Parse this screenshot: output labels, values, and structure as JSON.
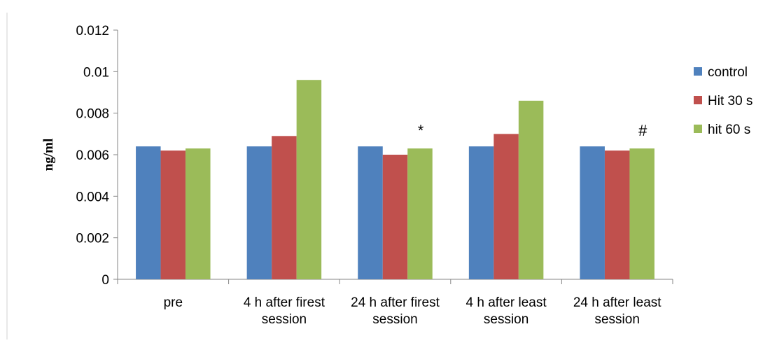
{
  "chart_data": {
    "type": "bar",
    "title": "",
    "xlabel": "",
    "ylabel": "ng/ml",
    "ylim": [
      0,
      0.012
    ],
    "yticks": [
      "0",
      "0.002",
      "0.004",
      "0.006",
      "0.008",
      "0.01",
      "0.012"
    ],
    "grid": false,
    "legend_position": "right",
    "categories": [
      [
        "pre"
      ],
      [
        "4 h after firest",
        "session"
      ],
      [
        "24 h after firest",
        "session"
      ],
      [
        "4 h after least",
        "session"
      ],
      [
        "24 h after least",
        "session"
      ]
    ],
    "series": [
      {
        "name": "control",
        "color": "#4F81BD",
        "values": [
          0.0064,
          0.0064,
          0.0064,
          0.0064,
          0.0064
        ]
      },
      {
        "name": "Hit 30 s",
        "color": "#C0504D",
        "values": [
          0.0062,
          0.0069,
          0.006,
          0.007,
          0.0062
        ]
      },
      {
        "name": "hit 60 s",
        "color": "#9BBB59",
        "values": [
          0.0063,
          0.0096,
          0.0063,
          0.0086,
          0.0063
        ]
      }
    ],
    "annotations": [
      {
        "text": "*",
        "category_index": 2,
        "series_index": 2
      },
      {
        "text": "#",
        "category_index": 4,
        "series_index": 2
      }
    ]
  }
}
